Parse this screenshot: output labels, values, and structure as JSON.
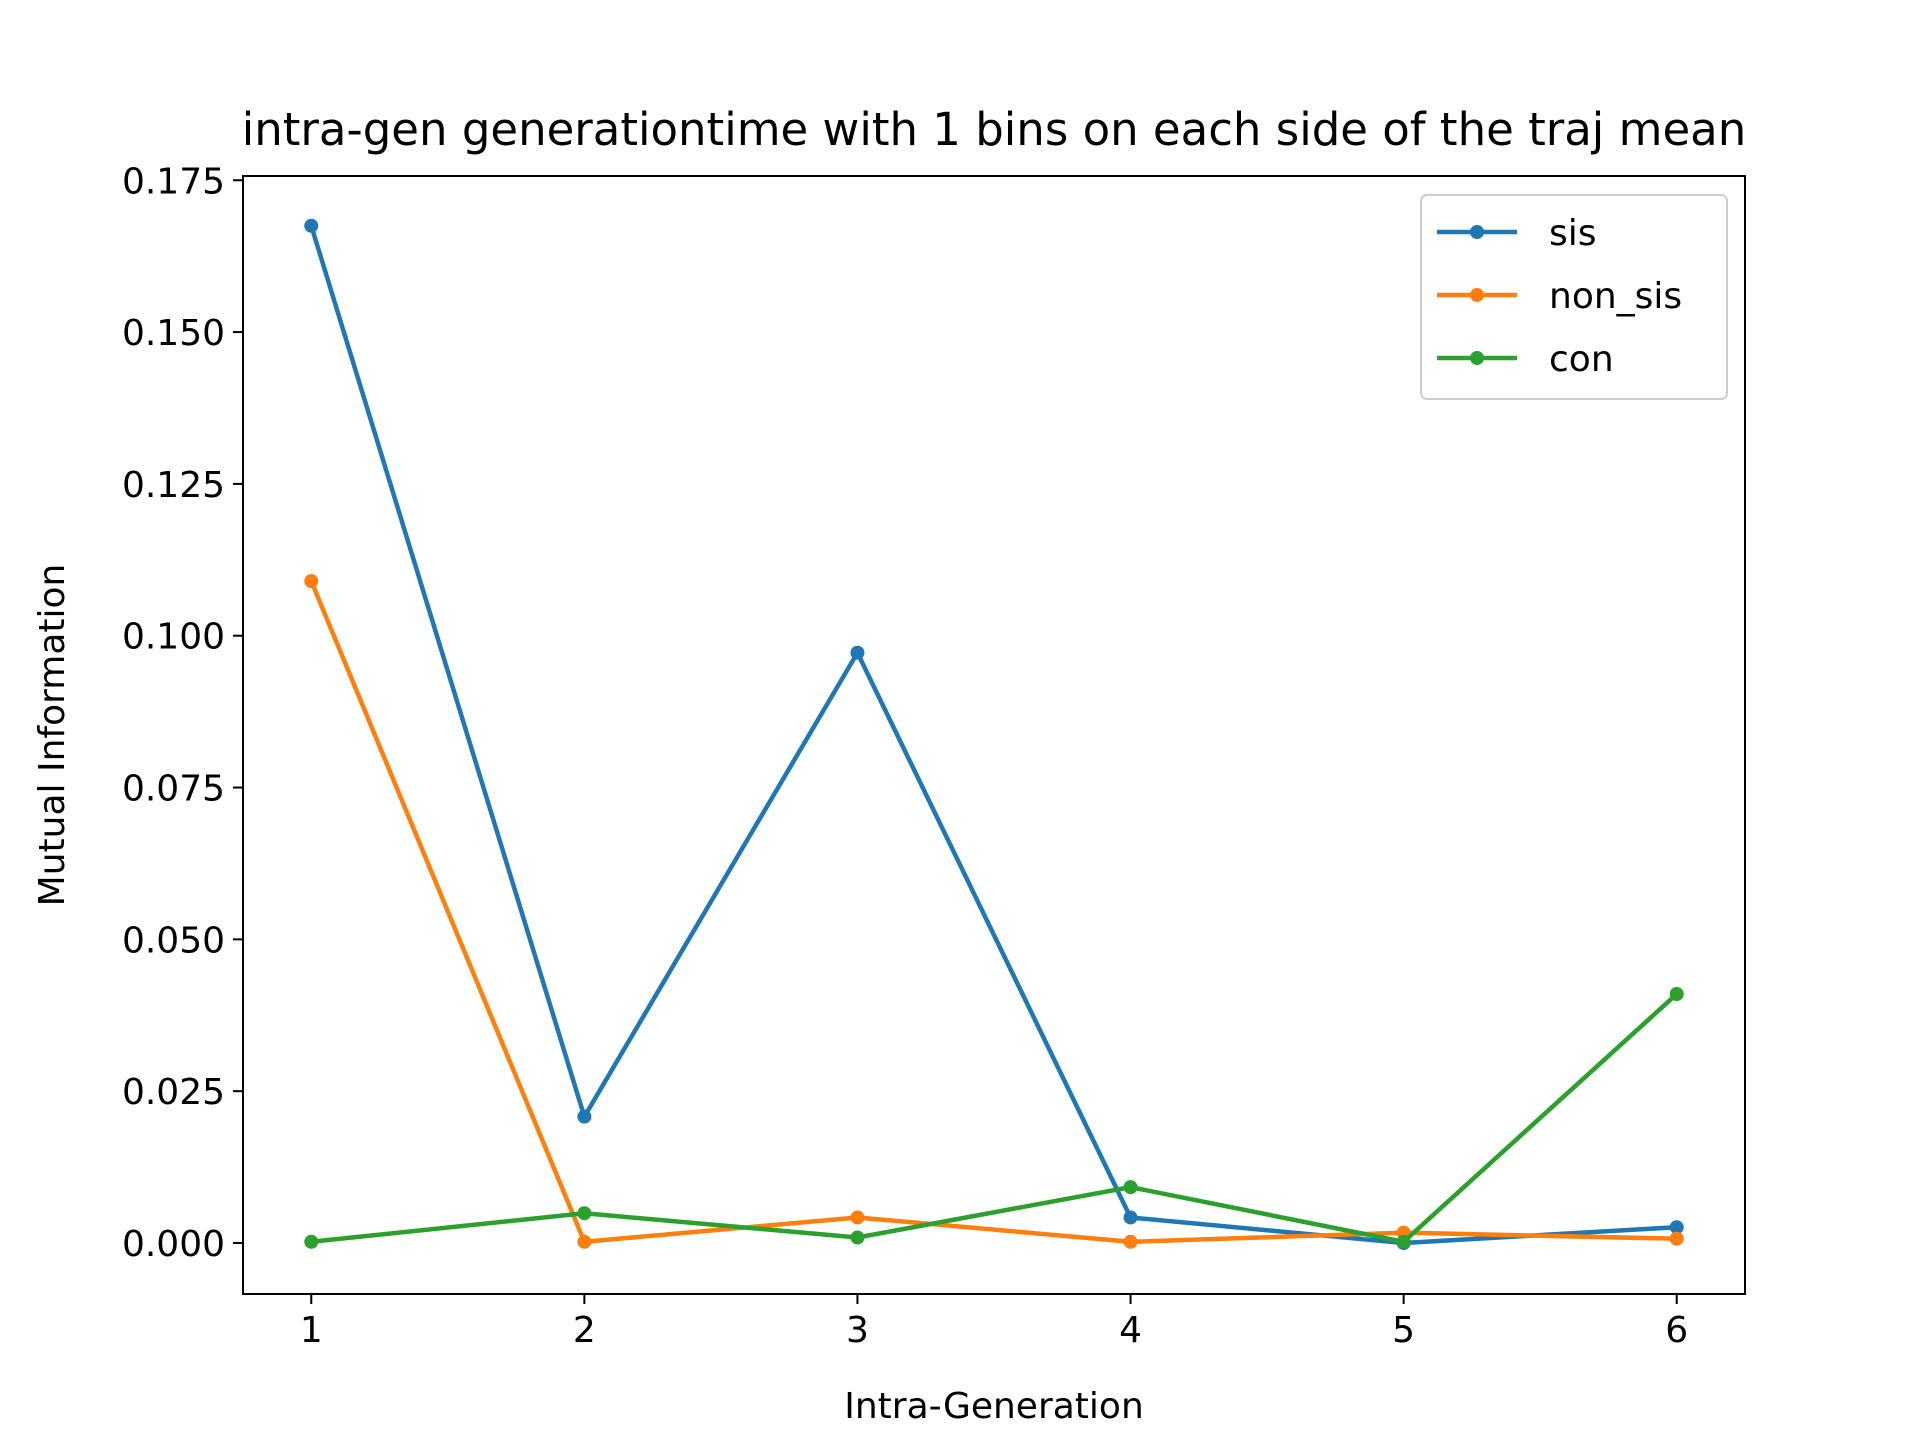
{
  "chart_data": {
    "type": "line",
    "title": "intra-gen generationtime with 1 bins on each side of the traj mean",
    "xlabel": "Intra-Generation",
    "ylabel": "Mutual Information",
    "x": [
      1,
      2,
      3,
      4,
      5,
      6
    ],
    "xticks": [
      "1",
      "2",
      "3",
      "4",
      "5",
      "6"
    ],
    "xlim": [
      0.75,
      6.25
    ],
    "yticks": [
      "0.000",
      "0.025",
      "0.050",
      "0.075",
      "0.100",
      "0.125",
      "0.150",
      "0.175"
    ],
    "ylim": [
      -0.0084,
      0.1757
    ],
    "grid": false,
    "legend_position": "upper right",
    "series": [
      {
        "name": "sis",
        "color": "#1f77b4",
        "values": [
          0.1675,
          0.0208,
          0.0972,
          0.0042,
          0.0,
          0.0026
        ]
      },
      {
        "name": "non_sis",
        "color": "#ff7f0e",
        "values": [
          0.109,
          0.0002,
          0.0042,
          0.0002,
          0.0017,
          0.0007
        ]
      },
      {
        "name": "con",
        "color": "#2ca02c",
        "values": [
          0.0002,
          0.0049,
          0.0009,
          0.0092,
          0.0002,
          0.041
        ]
      }
    ]
  }
}
